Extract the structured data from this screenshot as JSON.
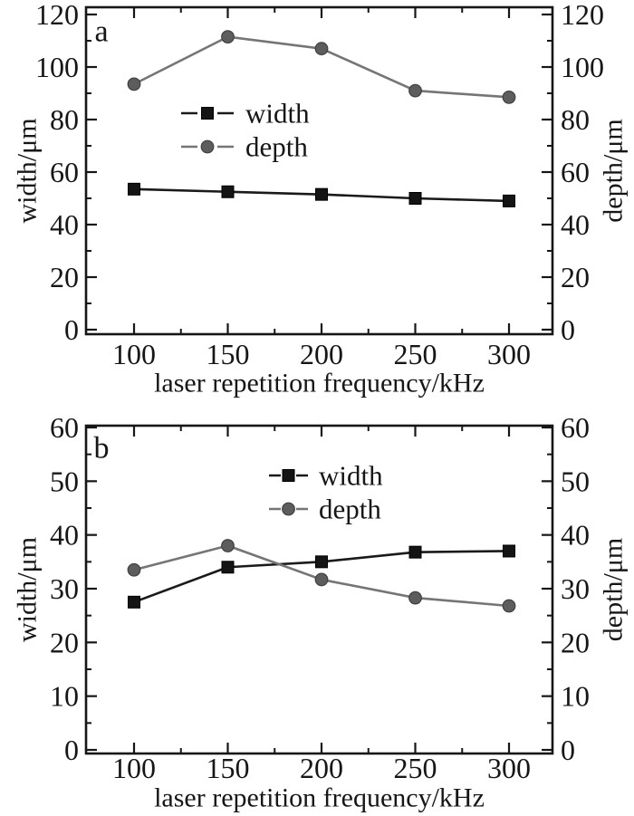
{
  "figure": {
    "background": "#ffffff",
    "text_color": "#161616",
    "axis_color": "#161616"
  },
  "chart_data": [
    {
      "id": "a",
      "type": "line",
      "panel_label": "a",
      "title": "",
      "xlabel": "laser repetition frequency/kHz",
      "ylabel_left": "width/μm",
      "ylabel_right": "depth/μm",
      "x": [
        100,
        150,
        200,
        250,
        300
      ],
      "xticks": [
        100,
        150,
        200,
        250,
        300
      ],
      "xminor_ticks": [
        125,
        175,
        225,
        275
      ],
      "xlim": [
        74,
        324
      ],
      "ylim": [
        0,
        120
      ],
      "yticks": [
        0,
        20,
        40,
        60,
        80,
        100,
        120
      ],
      "yminor_ticks": [
        10,
        30,
        50,
        70,
        90,
        110
      ],
      "grid": false,
      "legend": {
        "position": "inside upper-center-left",
        "items": [
          "width",
          "depth"
        ]
      },
      "series": [
        {
          "name": "width",
          "marker": "square",
          "line_color": "#1a1a1a",
          "marker_fill": "#141414",
          "marker_edge": "#000000",
          "values": [
            53.5,
            52.5,
            51.5,
            50,
            49
          ]
        },
        {
          "name": "depth",
          "marker": "circle",
          "line_color": "#757575",
          "marker_fill": "#5d5d5d",
          "marker_edge": "#404040",
          "values": [
            93.5,
            111.5,
            107,
            91,
            88.5
          ]
        }
      ]
    },
    {
      "id": "b",
      "type": "line",
      "panel_label": "b",
      "title": "",
      "xlabel": "laser repetition frequency/kHz",
      "ylabel_left": "width/μm",
      "ylabel_right": "depth/μm",
      "x": [
        100,
        150,
        200,
        250,
        300
      ],
      "xticks": [
        100,
        150,
        200,
        250,
        300
      ],
      "xminor_ticks": [
        125,
        175,
        225,
        275
      ],
      "xlim": [
        74,
        324
      ],
      "ylim": [
        0,
        60
      ],
      "yticks": [
        0,
        10,
        20,
        30,
        40,
        50,
        60
      ],
      "yminor_ticks": [
        5,
        15,
        25,
        35,
        45,
        55
      ],
      "grid": false,
      "legend": {
        "position": "inside upper-center-right",
        "items": [
          "width",
          "depth"
        ]
      },
      "series": [
        {
          "name": "width",
          "marker": "square",
          "line_color": "#1a1a1a",
          "marker_fill": "#141414",
          "marker_edge": "#000000",
          "values": [
            27.5,
            34,
            35,
            36.8,
            37
          ]
        },
        {
          "name": "depth",
          "marker": "circle",
          "line_color": "#757575",
          "marker_fill": "#5d5d5d",
          "marker_edge": "#404040",
          "values": [
            33.5,
            38,
            31.7,
            28.3,
            26.8
          ]
        }
      ]
    }
  ]
}
